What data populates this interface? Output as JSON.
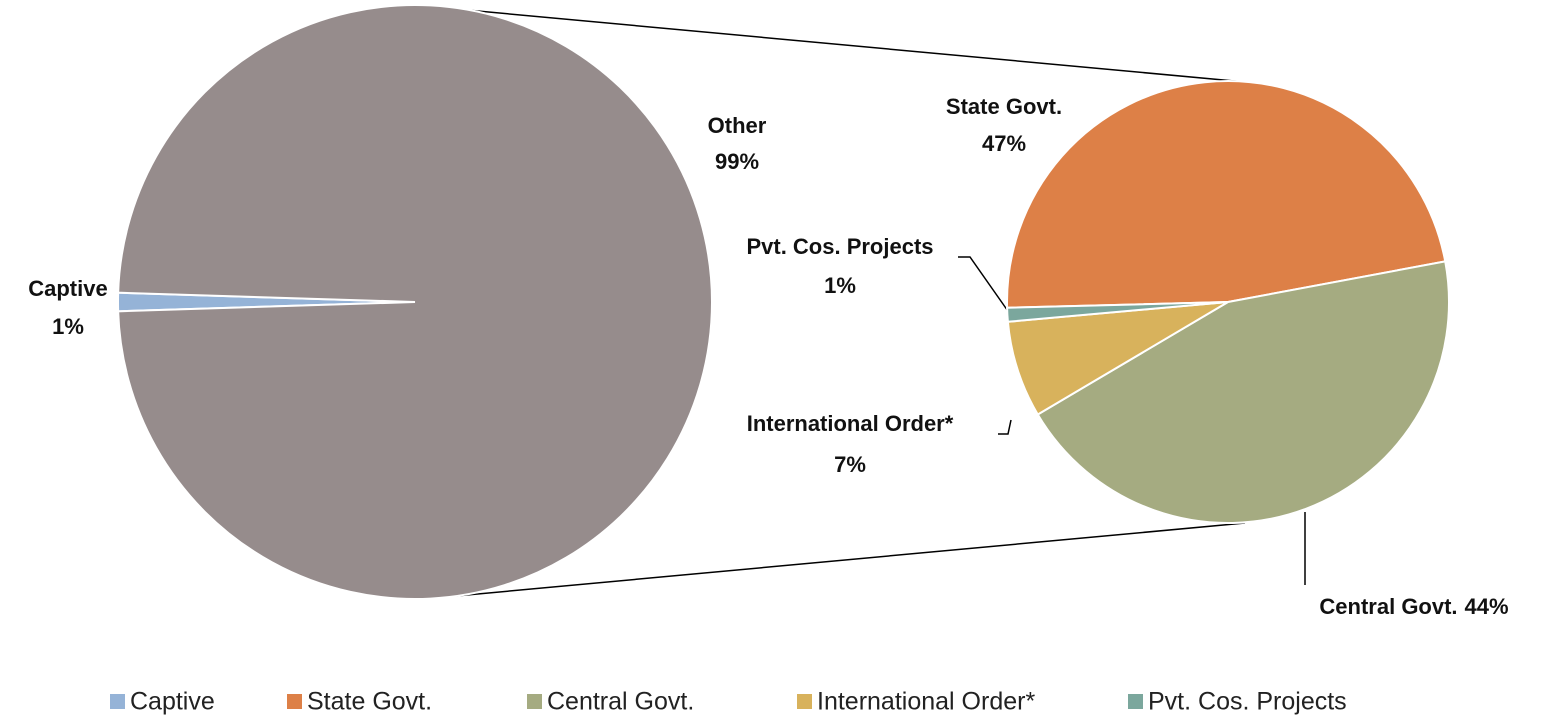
{
  "chart_data": [
    {
      "type": "pie",
      "categories": [
        "Captive",
        "Other"
      ],
      "values": [
        1,
        99
      ],
      "value_labels": [
        "1%",
        "99%"
      ],
      "colors": [
        "#95b3d7",
        "#968c8c"
      ]
    },
    {
      "type": "pie",
      "categories": [
        "State Govt.",
        "Central Govt.",
        "International Order*",
        "Pvt. Cos. Projects"
      ],
      "values": [
        47,
        44,
        7,
        1
      ],
      "value_labels": [
        "47%",
        "44%",
        "7%",
        "1%"
      ],
      "colors": [
        "#dd8047",
        "#a5ab81",
        "#d8b25c",
        "#7ba79d"
      ]
    }
  ]
}
